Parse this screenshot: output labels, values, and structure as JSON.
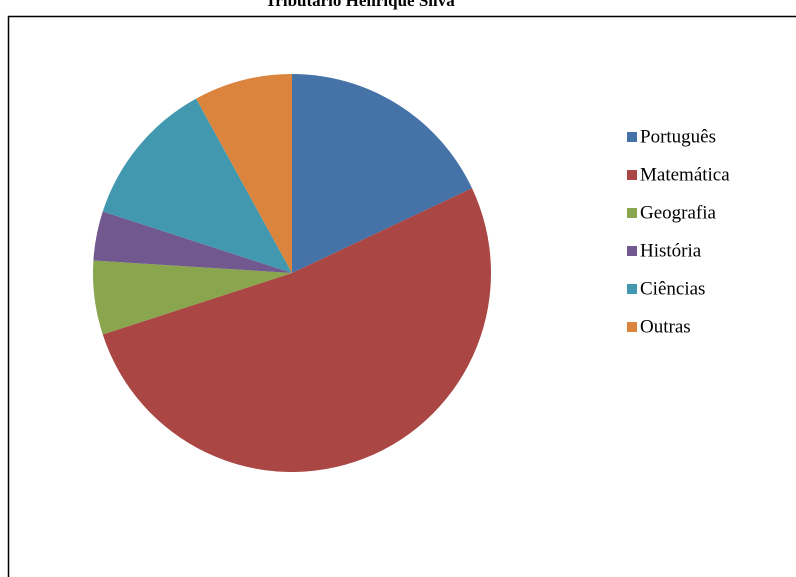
{
  "chart_data": {
    "type": "pie",
    "title": "Tributário Henrique Silva",
    "categories": [
      "Português",
      "Matemática",
      "Geografia",
      "História",
      "Ciências",
      "Outras"
    ],
    "values": [
      18,
      52,
      6,
      4,
      12,
      8
    ],
    "colors": [
      "#4572a7",
      "#aa4643",
      "#89a54e",
      "#71588f",
      "#4198af",
      "#db843d"
    ],
    "legend": "right"
  }
}
